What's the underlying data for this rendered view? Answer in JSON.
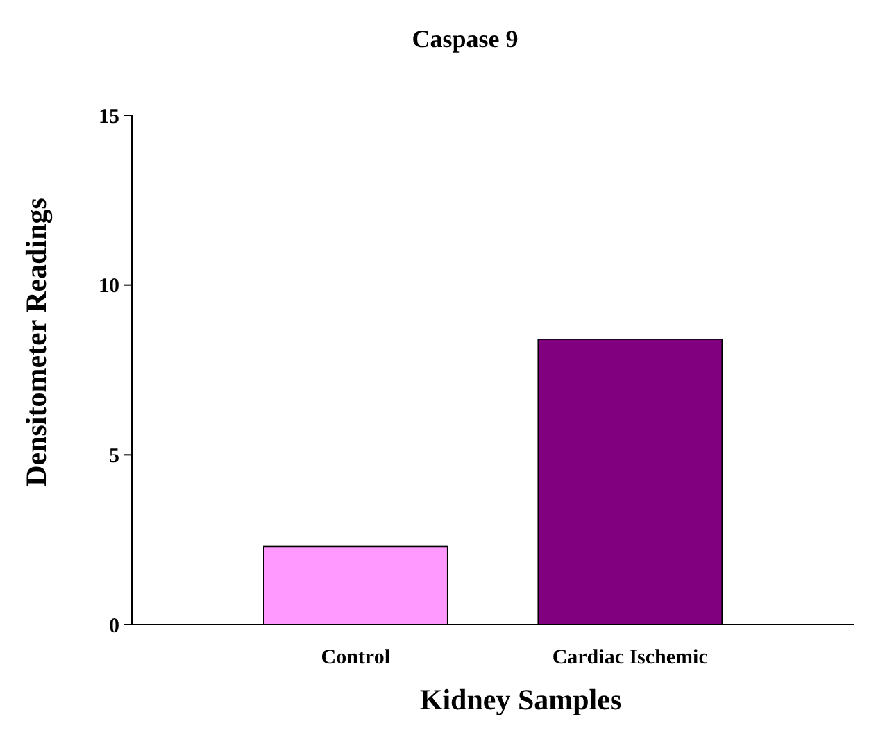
{
  "chart_data": {
    "type": "bar",
    "title": "Caspase 9",
    "xlabel": "Kidney Samples",
    "ylabel": "Densitometer Readings",
    "categories": [
      "Control",
      "Cardiac Ischemic"
    ],
    "values": [
      2.3,
      8.4
    ],
    "colors": [
      "#ff99ff",
      "#800080"
    ],
    "ylim": [
      0,
      15
    ],
    "yticks": [
      0,
      5,
      10,
      15
    ],
    "grid": false
  }
}
